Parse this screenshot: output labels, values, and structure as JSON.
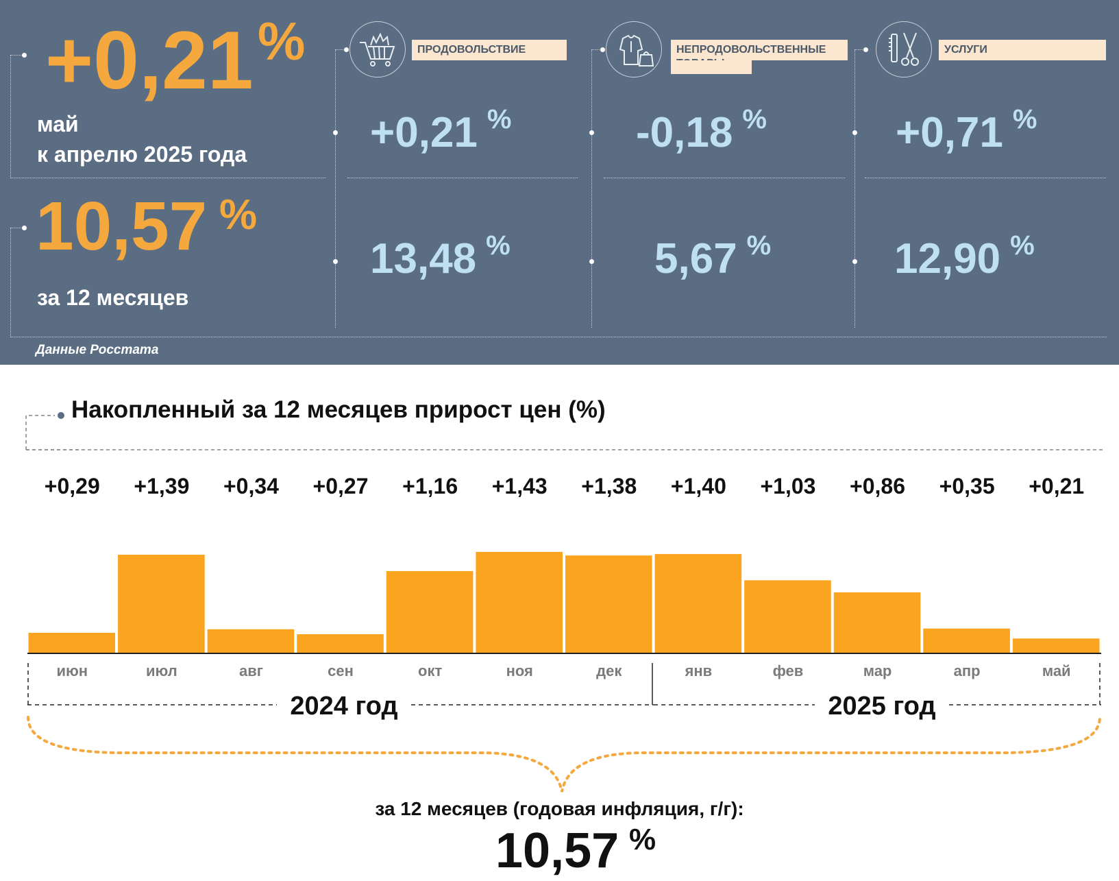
{
  "header": {
    "monthly": {
      "value": "+0,21",
      "unit": "%",
      "line1": "май",
      "line2": "к апрелю 2025 года"
    },
    "annual": {
      "value": "10,57",
      "unit": "%",
      "label": "за 12 месяцев"
    },
    "source": "Данные Росстата",
    "categories": [
      {
        "label": "ПРОДОВОЛЬСТВИЕ",
        "icon": "shopping-cart-icon",
        "monthly": "+0,21",
        "annual": "13,48",
        "unit": "%"
      },
      {
        "label": "НЕПРОДОВОЛЬСТВЕННЫЕ ТОВАРЫ",
        "icon": "clothing-bag-icon",
        "monthly": "-0,18",
        "annual": "5,67",
        "unit": "%"
      },
      {
        "label": "УСЛУГИ",
        "icon": "scissors-comb-icon",
        "monthly": "+0,71",
        "annual": "12,90",
        "unit": "%"
      }
    ]
  },
  "chart_title": "Накопленный за 12 месяцев прирост цен (%)",
  "chart_data": {
    "type": "bar",
    "categories": [
      "июн",
      "июл",
      "авг",
      "сен",
      "окт",
      "ноя",
      "дек",
      "янв",
      "фев",
      "мар",
      "апр",
      "май"
    ],
    "values": [
      0.29,
      1.39,
      0.34,
      0.27,
      1.16,
      1.43,
      1.38,
      1.4,
      1.03,
      0.86,
      0.35,
      0.21
    ],
    "value_labels": [
      "+0,29",
      "+1,39",
      "+0,34",
      "+0,27",
      "+1,16",
      "+1,43",
      "+1,38",
      "+1,40",
      "+1,03",
      "+0,86",
      "+0,35",
      "+0,21"
    ],
    "year_groups": [
      {
        "label": "2024 год",
        "months": 7
      },
      {
        "label": "2025 год",
        "months": 5
      }
    ],
    "bar_color": "#fba41f",
    "grid": false
  },
  "footer": {
    "caption": "за 12 месяцев (годовая инфляция, г/г):",
    "value": "10,57",
    "unit": "%"
  },
  "colors": {
    "panel": "#5a6d83",
    "accent_orange": "#f4a83d",
    "value_blue": "#bfe0f2",
    "bar": "#fba41f"
  }
}
